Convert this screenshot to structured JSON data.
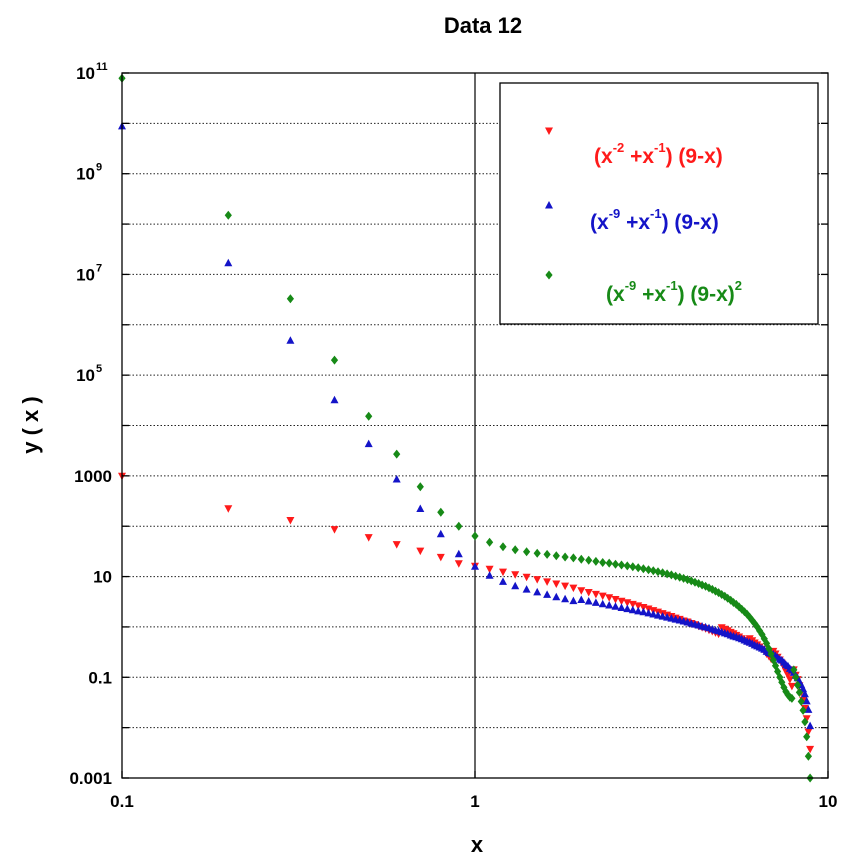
{
  "chart_data": {
    "type": "scatter",
    "title": "Data 12",
    "xlabel": "x",
    "ylabel": "y ( x )",
    "xscale": "log",
    "yscale": "log",
    "xlim": [
      0.1,
      10
    ],
    "ylim": [
      0.001,
      100000000000
    ],
    "grid": "horizontal dotted at each decade; vertical solid line at x=1",
    "legend_position": "top-right",
    "x_ticks": [
      {
        "label": "0.1"
      },
      {
        "label": "1"
      },
      {
        "label": "10"
      }
    ],
    "y_ticks": [
      {
        "label": "10",
        "sup": "11"
      },
      {
        "label": "10",
        "sup": "9"
      },
      {
        "label": "10",
        "sup": "7"
      },
      {
        "label": "10",
        "sup": "5"
      },
      {
        "label": "1000",
        "sup": ""
      },
      {
        "label": "10",
        "sup": ""
      },
      {
        "label": "0.1",
        "sup": ""
      },
      {
        "label": "0.001",
        "sup": ""
      }
    ],
    "x": [
      0.1,
      0.2,
      0.3,
      0.4,
      0.5,
      0.6,
      0.7,
      0.8,
      0.9,
      1.0,
      1.1,
      1.2,
      1.3,
      1.4,
      1.5,
      1.6,
      1.7,
      1.8,
      1.9,
      2.0,
      2.1,
      2.2,
      2.3,
      2.4,
      2.5,
      2.6,
      2.7,
      2.8,
      2.9,
      3.0,
      3.1,
      3.2,
      3.3,
      3.4,
      3.5,
      3.6,
      3.7,
      3.8,
      3.9,
      4.0,
      4.1,
      4.2,
      4.3,
      4.4,
      4.5,
      4.6,
      4.7,
      4.8,
      4.9,
      5.0,
      5.1,
      5.2,
      5.3,
      5.4,
      5.5,
      5.6,
      5.7,
      5.8,
      5.9,
      6.0,
      6.1,
      6.2,
      6.3,
      6.4,
      6.5,
      6.6,
      6.7,
      6.8,
      6.9,
      7.0,
      7.1,
      7.2,
      7.3,
      7.4,
      7.5,
      7.6,
      7.7,
      7.8,
      7.9,
      8.0,
      8.1,
      8.2,
      8.3,
      8.4,
      8.5,
      8.6,
      8.7,
      8.8,
      8.9
    ],
    "series": [
      {
        "name": "(x^-2 + x^-1) (9-x)",
        "color": "#ff1a1a",
        "marker": "triangle-down",
        "values": [
          980,
          222.5,
          129.7,
          85.5,
          59.5,
          43.17,
          31.98,
          24.03,
          18,
          16,
          13.93,
          12.25,
          10.86,
          9.69,
          8.7,
          7.85,
          7.11,
          6.46,
          5.89,
          5.25,
          4.82,
          4.43,
          4.09,
          3.78,
          3.5,
          3.24,
          3.01,
          2.8,
          2.61,
          2.43,
          2.27,
          2.11,
          1.97,
          1.84,
          1.72,
          1.61,
          1.5,
          1.41,
          1.31,
          1.25,
          1.17,
          1.1,
          1.03,
          0.97,
          0.92,
          0.86,
          0.81,
          0.76,
          0.72,
          0.96,
          0.9,
          0.84,
          0.78,
          0.73,
          0.68,
          0.63,
          0.58,
          0.54,
          0.5,
          0.58,
          0.53,
          0.48,
          0.44,
          0.4,
          0.36,
          0.33,
          0.29,
          0.26,
          0.23,
          0.327,
          0.29,
          0.25,
          0.22,
          0.19,
          0.16,
          0.13,
          0.11,
          0.09,
          0.066,
          0.14,
          0.11,
          0.09,
          0.068,
          0.05,
          0.035,
          0.024,
          0.015,
          0.0082,
          0.0037
        ]
      },
      {
        "name": "(x^-9 + x^-1) (9-x)",
        "color": "#1414c8",
        "marker": "triangle-up",
        "values": [
          8900000000,
          17000000,
          491000,
          32600,
          4370,
          866,
          225,
          71,
          28.5,
          16,
          10.6,
          8.03,
          6.58,
          5.63,
          4.96,
          4.42,
          3.99,
          3.63,
          3.33,
          3.5,
          3.27,
          3.07,
          2.89,
          2.72,
          2.57,
          2.43,
          2.31,
          2.19,
          2.08,
          2.0,
          1.9,
          1.81,
          1.72,
          1.64,
          1.57,
          1.5,
          1.43,
          1.37,
          1.31,
          1.25,
          1.19,
          1.14,
          1.09,
          1.04,
          1.0,
          0.96,
          0.91,
          0.87,
          0.84,
          0.8,
          0.76,
          0.73,
          0.69,
          0.66,
          0.64,
          0.61,
          0.58,
          0.55,
          0.52,
          0.5,
          0.47,
          0.44,
          0.42,
          0.4,
          0.38,
          0.36,
          0.33,
          0.31,
          0.3,
          0.29,
          0.27,
          0.25,
          0.23,
          0.22,
          0.2,
          0.18,
          0.17,
          0.15,
          0.14,
          0.125,
          0.11,
          0.098,
          0.084,
          0.071,
          0.059,
          0.047,
          0.034,
          0.023,
          0.011
        ]
      },
      {
        "name": "(x^-9 + x^-1) (9-x)^2",
        "color": "#178a17",
        "marker": "diamond",
        "values": [
          79000000000,
          150000000,
          3300000,
          199000,
          15200,
          2700,
          609,
          190,
          100,
          64,
          48,
          39,
          34,
          31,
          29,
          27.5,
          26,
          24.5,
          23.5,
          22,
          21,
          20,
          19,
          18.5,
          17.5,
          17,
          16.3,
          15.6,
          15,
          14.3,
          13.7,
          13,
          12.5,
          11.9,
          11.3,
          10.8,
          10.2,
          9.7,
          9.2,
          8.7,
          8.2,
          7.7,
          7.3,
          6.8,
          6.4,
          5.95,
          5.55,
          5.15,
          4.8,
          4.4,
          4.05,
          3.7,
          3.4,
          3.05,
          2.8,
          2.5,
          2.25,
          2.0,
          1.78,
          1.55,
          1.35,
          1.17,
          1.0,
          0.84,
          0.71,
          0.58,
          0.47,
          0.37,
          0.29,
          0.22,
          0.17,
          0.13,
          0.1,
          0.08,
          0.063,
          0.052,
          0.045,
          0.04,
          0.038,
          0.14,
          0.1,
          0.07,
          0.05,
          0.033,
          0.022,
          0.013,
          0.0066,
          0.0027,
          0.001
        ]
      }
    ]
  }
}
